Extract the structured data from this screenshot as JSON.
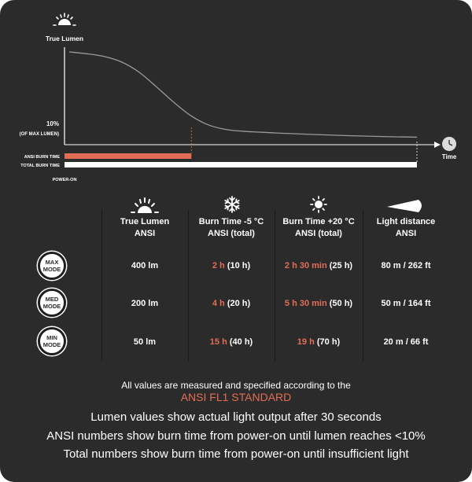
{
  "chart_data": {
    "type": "line",
    "ylabel": "True Lumen",
    "xlabel": "Time",
    "y_tick_label": "10%",
    "y_tick_sublabel": "(OF MAX LUMEN)",
    "x_start_label": "POWER-ON",
    "x_range": [
      0,
      100
    ],
    "y_range": [
      0,
      100
    ],
    "series": [
      {
        "x": [
          0,
          5,
          10,
          15,
          20,
          25,
          30,
          35,
          40,
          45,
          50,
          55,
          60,
          70,
          80,
          90,
          100
        ],
        "y": [
          100,
          98,
          95,
          89,
          78,
          62,
          45,
          30,
          20,
          15,
          13,
          12,
          11,
          9.5,
          8.2,
          7.2,
          6.5
        ]
      }
    ],
    "bars": [
      {
        "name": "ANSI BURN TIME",
        "start": 0,
        "end": 36,
        "color": "#e36d54"
      },
      {
        "name": "TOTAL BURN TIME",
        "start": 0,
        "end": 100,
        "color": "#ffffff"
      }
    ],
    "colors": {
      "line": "#9a9a9a",
      "axis": "#ffffff",
      "accent": "#e36d54"
    }
  },
  "icons": {
    "lumen": "sun-rays-icon",
    "cold": "snowflake-icon",
    "warm": "sun-icon",
    "distance": "light-beam-icon",
    "time": "clock-icon"
  },
  "table": {
    "headers": [
      {
        "line1": "True Lumen",
        "line2": "ANSI"
      },
      {
        "line1": "Burn Time -5 °C",
        "line2": "ANSI (total)"
      },
      {
        "line1": "Burn Time +20 °C",
        "line2": "ANSI (total)"
      },
      {
        "line1": "Light distance",
        "line2": "ANSI"
      }
    ],
    "rows": [
      {
        "mode_line1": "MAX",
        "mode_line2": "MODE",
        "lumen": "400 lm",
        "cold_ansi": "2 h",
        "cold_total": "(10 h)",
        "warm_ansi": "2 h 30 min",
        "warm_total": "(25 h)",
        "distance": "80 m / 262 ft"
      },
      {
        "mode_line1": "MED",
        "mode_line2": "MODE",
        "lumen": "200 lm",
        "cold_ansi": "4 h",
        "cold_total": "(20 h)",
        "warm_ansi": "5 h 30 min",
        "warm_total": "(50 h)",
        "distance": "50 m / 164 ft"
      },
      {
        "mode_line1": "MIN",
        "mode_line2": "MODE",
        "lumen": "50 lm",
        "cold_ansi": "15 h",
        "cold_total": "(40 h)",
        "warm_ansi": "19 h",
        "warm_total": "(70 h)",
        "distance": "20 m / 66 ft"
      }
    ]
  },
  "footer": {
    "line1": "All values are measured and specified according to the",
    "line2": "ANSI FL1 STANDARD",
    "line3": "Lumen values show actual light output after 30 seconds",
    "line4": "ANSI numbers show burn time from power-on until lumen reaches <10%",
    "line5": "Total numbers show burn time from power-on until insufficient light"
  }
}
